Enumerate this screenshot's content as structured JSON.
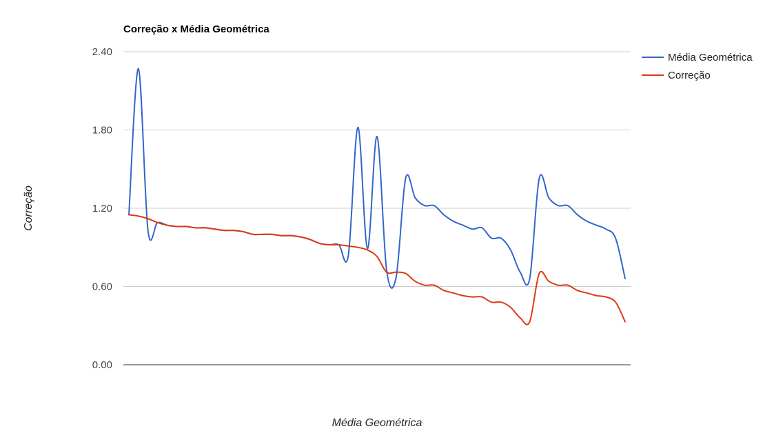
{
  "chart_data": {
    "type": "line",
    "title": "Correção x Média Geométrica",
    "xlabel": "Média Geométrica",
    "ylabel": "Correção",
    "ylim": [
      0,
      2.4
    ],
    "yticks": [
      "0.00",
      "0.60",
      "1.20",
      "1.80",
      "2.40"
    ],
    "grid": true,
    "legend_position": "right",
    "x": [
      1,
      2,
      3,
      4,
      5,
      6,
      7,
      8,
      9,
      10,
      11,
      12,
      13,
      14,
      15,
      16,
      17,
      18,
      19,
      20,
      21,
      22,
      23,
      24,
      25,
      26,
      27,
      28,
      29,
      30,
      31,
      32,
      33,
      34,
      35,
      36,
      37,
      38,
      39,
      40,
      41,
      42,
      43,
      44,
      45,
      46,
      47,
      48,
      49,
      50,
      51,
      52,
      53
    ],
    "series": [
      {
        "name": "Média Geométrica",
        "color": "#3366cc",
        "values": [
          1.15,
          2.27,
          1.03,
          1.09,
          1.07,
          1.06,
          1.06,
          1.05,
          1.05,
          1.04,
          1.03,
          1.03,
          1.02,
          1.0,
          1.0,
          1.0,
          0.99,
          0.99,
          0.98,
          0.96,
          0.93,
          0.92,
          0.92,
          0.84,
          1.82,
          0.89,
          1.75,
          0.73,
          0.67,
          1.43,
          1.28,
          1.22,
          1.22,
          1.15,
          1.1,
          1.07,
          1.04,
          1.05,
          0.97,
          0.97,
          0.88,
          0.71,
          0.66,
          1.43,
          1.28,
          1.22,
          1.22,
          1.15,
          1.1,
          1.07,
          1.04,
          0.97,
          0.66
        ]
      },
      {
        "name": "Correção",
        "color": "#dc3912",
        "values": [
          1.15,
          1.14,
          1.12,
          1.09,
          1.07,
          1.06,
          1.06,
          1.05,
          1.05,
          1.04,
          1.03,
          1.03,
          1.02,
          1.0,
          1.0,
          1.0,
          0.99,
          0.99,
          0.98,
          0.96,
          0.93,
          0.92,
          0.92,
          0.91,
          0.9,
          0.88,
          0.83,
          0.71,
          0.71,
          0.7,
          0.64,
          0.61,
          0.61,
          0.57,
          0.55,
          0.53,
          0.52,
          0.52,
          0.48,
          0.48,
          0.44,
          0.36,
          0.33,
          0.7,
          0.64,
          0.61,
          0.61,
          0.57,
          0.55,
          0.53,
          0.52,
          0.48,
          0.33
        ]
      }
    ]
  }
}
